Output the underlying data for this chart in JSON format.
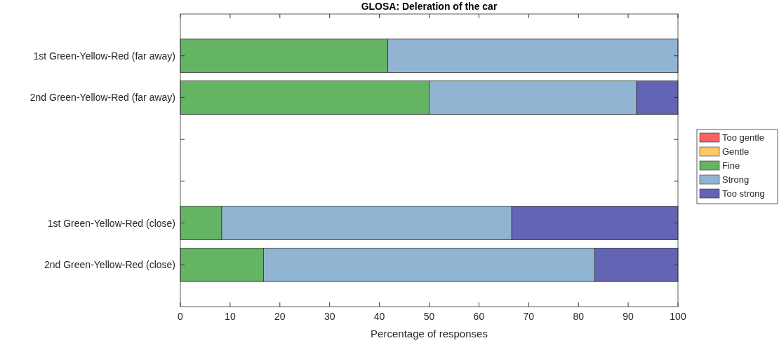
{
  "chart_data": {
    "type": "bar",
    "orientation": "horizontal",
    "stacked": true,
    "title": "GLOSA: Deleration of the car",
    "xlabel": "Percentage of responses",
    "categories": [
      "1st Green-Yellow-Red (far away)",
      "2nd Green-Yellow-Red (far away)",
      null,
      null,
      "1st Green-Yellow-Red (close)",
      "2nd Green-Yellow-Red (close)"
    ],
    "series": [
      {
        "name": "Too gentle",
        "color": "#f46464",
        "values": [
          0,
          0,
          null,
          null,
          0,
          0
        ]
      },
      {
        "name": "Gentle",
        "color": "#ffc864",
        "values": [
          0,
          0,
          null,
          null,
          0,
          0
        ]
      },
      {
        "name": "Fine",
        "color": "#64b464",
        "values": [
          41.7,
          50,
          null,
          null,
          8.3,
          16.7
        ]
      },
      {
        "name": "Strong",
        "color": "#91b4d2",
        "values": [
          58.3,
          41.7,
          null,
          null,
          58.3,
          66.6
        ]
      },
      {
        "name": "Too strong",
        "color": "#6464b4",
        "values": [
          0,
          8.3,
          null,
          null,
          33.4,
          16.7
        ]
      }
    ],
    "xlim": [
      0,
      100
    ],
    "xticks": [
      0,
      10,
      20,
      30,
      40,
      50,
      60,
      70,
      80,
      90,
      100
    ],
    "grid": false,
    "legend": "right"
  }
}
